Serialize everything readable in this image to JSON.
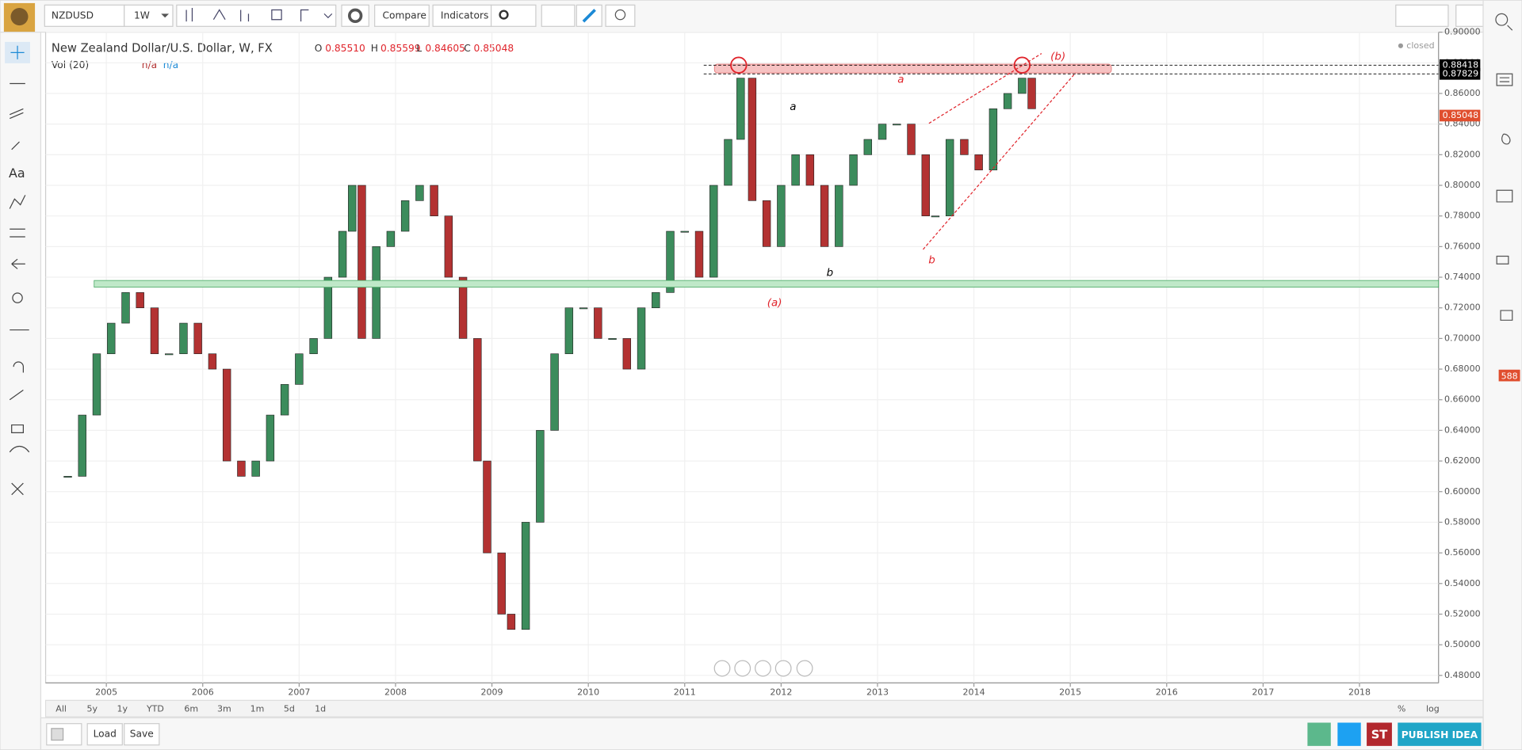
{
  "toolbar": {
    "symbol": "NZDUSD",
    "interval": "1W",
    "compare": "Compare",
    "indicators": "Indicators"
  },
  "legend": {
    "title": "New Zealand Dollar/U.S. Dollar, W, FX",
    "o_label": "O",
    "o": "0.85510",
    "h_label": "H",
    "h": "0.85599",
    "l_label": "L",
    "l": "0.84605",
    "c_label": "C",
    "c": "0.85048",
    "vol": "Vol (20)",
    "vol_a": "n/a",
    "vol_b": "n/a",
    "status": "closed"
  },
  "price_labels": [
    "0.88418",
    "0.87829",
    "0.85048"
  ],
  "annotations": [
    {
      "text": "a",
      "color": "#000"
    },
    {
      "text": "b",
      "color": "#000"
    },
    {
      "text": "(a)",
      "color": "#e0242b"
    },
    {
      "text": "a",
      "color": "#e0242b"
    },
    {
      "text": "b",
      "color": "#e0242b"
    },
    {
      "text": "(b)",
      "color": "#e0242b"
    }
  ],
  "ranges": [
    "All",
    "5y",
    "1y",
    "YTD",
    "6m",
    "3m",
    "1m",
    "5d",
    "1d"
  ],
  "scale_options": [
    "%",
    "log"
  ],
  "bottom": {
    "load": "Load",
    "save": "Save",
    "st": "ST",
    "publish": "PUBLISH IDEA"
  },
  "sidebar": {
    "badge": "588",
    "text_tool": "Aa"
  },
  "chart": {
    "type": "candlestick",
    "up_color": "#3c8c5c",
    "down_color": "#b33232",
    "xlim": [
      2004.37,
      2018.82
    ],
    "xticks": [
      2005,
      2006,
      2007,
      2008,
      2009,
      2010,
      2011,
      2012,
      2013,
      2014,
      2015,
      2016,
      2017,
      2018
    ],
    "ylim": [
      0.4751,
      0.9
    ],
    "yticks": [
      {
        "value": 0.48,
        "label": "0.48000"
      },
      {
        "value": 0.5,
        "label": "0.50000"
      },
      {
        "value": 0.52,
        "label": "0.52000"
      },
      {
        "value": 0.54,
        "label": "0.54000"
      },
      {
        "value": 0.56,
        "label": "0.56000"
      },
      {
        "value": 0.58,
        "label": "0.58000"
      },
      {
        "value": 0.6,
        "label": "0.60000"
      },
      {
        "value": 0.62,
        "label": "0.62000"
      },
      {
        "value": 0.64,
        "label": "0.64000"
      },
      {
        "value": 0.66,
        "label": "0.66000"
      },
      {
        "value": 0.68,
        "label": "0.68000"
      },
      {
        "value": 0.7,
        "label": "0.70000"
      },
      {
        "value": 0.72,
        "label": "0.72000"
      },
      {
        "value": 0.74,
        "label": "0.74000"
      },
      {
        "value": 0.76,
        "label": "0.76000"
      },
      {
        "value": 0.78,
        "label": "0.78000"
      },
      {
        "value": 0.8,
        "label": "0.80000"
      },
      {
        "value": 0.82,
        "label": "0.82000"
      },
      {
        "value": 0.84,
        "label": "0.84000"
      },
      {
        "value": 0.86,
        "label": "0.86000"
      },
      {
        "value": 0.88,
        "label": "0.88000"
      },
      {
        "value": 0.9,
        "label": "0.90000"
      }
    ],
    "x": [
      2004.6,
      2004.75,
      2004.9,
      2005.05,
      2005.2,
      2005.35,
      2005.5,
      2005.65,
      2005.8,
      2005.95,
      2006.1,
      2006.25,
      2006.4,
      2006.55,
      2006.7,
      2006.85,
      2007.0,
      2007.15,
      2007.3,
      2007.45,
      2007.55,
      2007.65,
      2007.8,
      2007.95,
      2008.1,
      2008.25,
      2008.4,
      2008.55,
      2008.7,
      2008.85,
      2008.95,
      2009.1,
      2009.2,
      2009.35,
      2009.5,
      2009.65,
      2009.8,
      2009.95,
      2010.1,
      2010.25,
      2010.4,
      2010.55,
      2010.7,
      2010.85,
      2011.0,
      2011.15,
      2011.3,
      2011.45,
      2011.58,
      2011.7,
      2011.85,
      2012.0,
      2012.15,
      2012.3,
      2012.45,
      2012.6,
      2012.75,
      2012.9,
      2013.05,
      2013.2,
      2013.35,
      2013.5,
      2013.6,
      2013.75,
      2013.9,
      2014.05,
      2014.2,
      2014.35,
      2014.5,
      2014.6
    ],
    "close": [
      0.61,
      0.65,
      0.69,
      0.71,
      0.73,
      0.72,
      0.69,
      0.69,
      0.71,
      0.69,
      0.68,
      0.62,
      0.61,
      0.62,
      0.65,
      0.67,
      0.69,
      0.7,
      0.74,
      0.77,
      0.8,
      0.7,
      0.76,
      0.77,
      0.79,
      0.8,
      0.78,
      0.74,
      0.7,
      0.62,
      0.56,
      0.52,
      0.51,
      0.58,
      0.64,
      0.69,
      0.72,
      0.72,
      0.7,
      0.7,
      0.68,
      0.72,
      0.73,
      0.77,
      0.77,
      0.74,
      0.8,
      0.83,
      0.87,
      0.79,
      0.76,
      0.8,
      0.82,
      0.8,
      0.76,
      0.8,
      0.82,
      0.83,
      0.84,
      0.84,
      0.82,
      0.78,
      0.78,
      0.83,
      0.82,
      0.81,
      0.85,
      0.86,
      0.87,
      0.85
    ]
  }
}
